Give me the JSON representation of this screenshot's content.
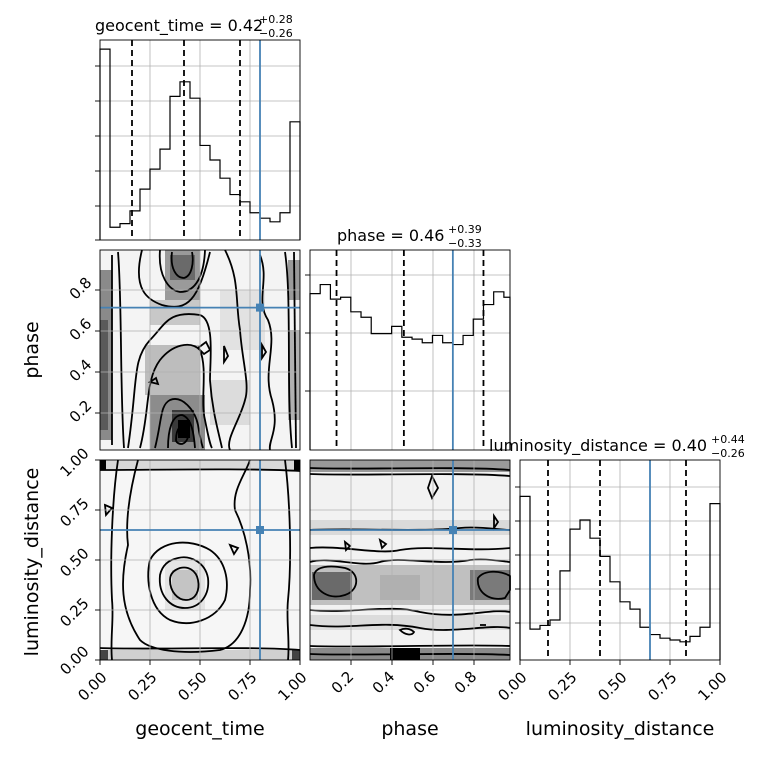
{
  "chart_data": {
    "type": "corner",
    "parameters": [
      {
        "name": "geocent_time",
        "title": "geocent_time = 0.42",
        "title_plus": "+0.28",
        "title_minus": "−0.26",
        "range": [
          0,
          1
        ],
        "ticks": [
          "0.00",
          "0.25",
          "0.50",
          "0.75",
          "1.00"
        ],
        "tick_values": [
          0,
          0.25,
          0.5,
          0.75,
          1.0
        ],
        "quantiles": [
          0.16,
          0.42,
          0.7
        ],
        "truth": 0.8,
        "hist_edges": [
          0,
          0.05,
          0.1,
          0.15,
          0.2,
          0.25,
          0.3,
          0.35,
          0.4,
          0.45,
          0.5,
          0.55,
          0.6,
          0.65,
          0.7,
          0.75,
          0.8,
          0.85,
          0.9,
          0.95,
          1.0
        ],
        "hist_values": [
          1.05,
          0.07,
          0.09,
          0.16,
          0.28,
          0.39,
          0.5,
          0.79,
          0.87,
          0.78,
          0.52,
          0.44,
          0.34,
          0.25,
          0.21,
          0.15,
          0.12,
          0.1,
          0.15,
          0.65
        ]
      },
      {
        "name": "phase",
        "title": "phase = 0.46",
        "title_plus": "+0.39",
        "title_minus": "−0.33",
        "range": [
          0,
          0.98
        ],
        "ticks": [
          "0.2",
          "0.4",
          "0.6",
          "0.8"
        ],
        "tick_values": [
          0.2,
          0.4,
          0.6,
          0.8
        ],
        "quantiles": [
          0.13,
          0.46,
          0.85
        ],
        "truth": 0.7,
        "hist_edges": [
          0,
          0.05,
          0.1,
          0.15,
          0.2,
          0.25,
          0.3,
          0.35,
          0.4,
          0.45,
          0.5,
          0.55,
          0.6,
          0.65,
          0.7,
          0.75,
          0.8,
          0.85,
          0.9,
          0.95,
          0.98
        ],
        "hist_values": [
          0.86,
          0.91,
          0.83,
          0.84,
          0.76,
          0.73,
          0.64,
          0.64,
          0.68,
          0.62,
          0.61,
          0.59,
          0.63,
          0.59,
          0.58,
          0.63,
          0.72,
          0.8,
          0.87,
          0.84
        ]
      },
      {
        "name": "luminosity_distance",
        "title": "luminosity_distance = 0.40",
        "title_plus": "+0.44",
        "title_minus": "−0.26",
        "range": [
          0,
          1
        ],
        "ticks": [
          "0.00",
          "0.25",
          "0.50",
          "0.75",
          "1.00"
        ],
        "tick_values": [
          0,
          0.25,
          0.5,
          0.75,
          1.0
        ],
        "quantiles": [
          0.14,
          0.4,
          0.83
        ],
        "truth": 0.65,
        "hist_edges": [
          0,
          0.05,
          0.1,
          0.15,
          0.2,
          0.25,
          0.3,
          0.35,
          0.4,
          0.45,
          0.5,
          0.55,
          0.6,
          0.65,
          0.7,
          0.75,
          0.8,
          0.85,
          0.9,
          0.95,
          1.0
        ],
        "hist_values": [
          0.9,
          0.17,
          0.19,
          0.22,
          0.49,
          0.72,
          0.77,
          0.67,
          0.57,
          0.43,
          0.32,
          0.28,
          0.18,
          0.14,
          0.12,
          0.11,
          0.1,
          0.13,
          0.18,
          0.86
        ]
      }
    ],
    "hist_ylim": [
      0,
      1.1
    ],
    "truth_points": [
      {
        "x_param": "geocent_time",
        "y_param": "phase",
        "x": 0.8,
        "y": 0.7
      },
      {
        "x_param": "geocent_time",
        "y_param": "luminosity_distance",
        "x": 0.8,
        "y": 0.65
      },
      {
        "x_param": "phase",
        "y_param": "luminosity_distance",
        "x": 0.7,
        "y": 0.65
      }
    ],
    "grid": true,
    "colors": {
      "truth": "#4682b4",
      "contour": "#000000",
      "hist": "#000000"
    }
  }
}
